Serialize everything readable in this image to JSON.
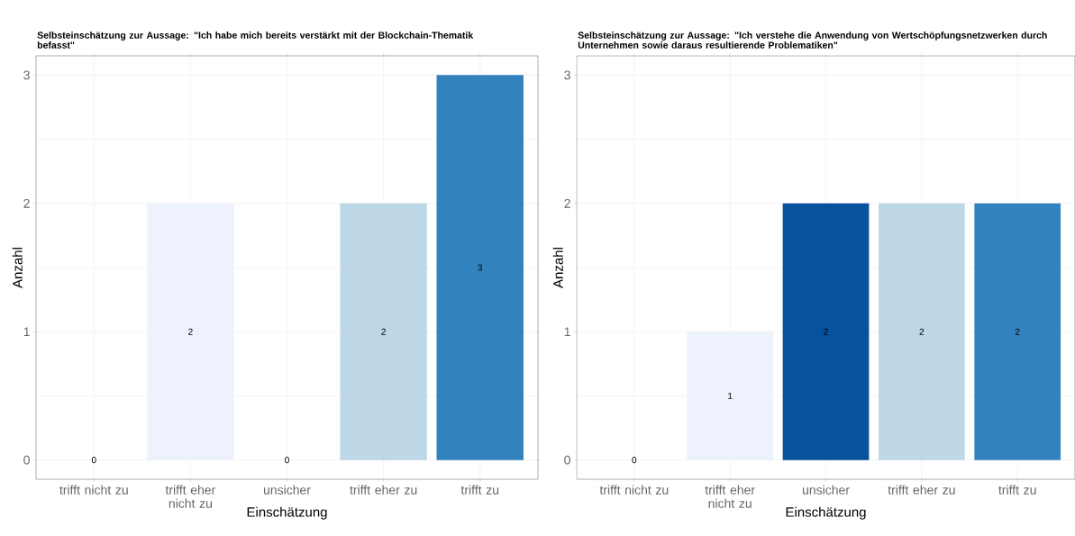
{
  "chart_data": [
    {
      "type": "bar",
      "title": "Selbsteinschätzung zur Aussage: \"Ich habe mich bereits verstärkt mit der Blockchain-Thematik befasst\"",
      "xlabel": "Einschätzung",
      "ylabel": "Anzahl",
      "categories": [
        "trifft nicht zu",
        "trifft eher nicht zu",
        "unsicher",
        "trifft eher zu",
        "trifft zu"
      ],
      "values": [
        0,
        2,
        0,
        2,
        3
      ],
      "colors": [
        "#f7fbff",
        "#eef2fd",
        "#08519c",
        "#bdd7e7",
        "#3182bd"
      ],
      "ylim": [
        -0.15,
        3.15
      ],
      "yticks": [
        0,
        1,
        2,
        3
      ],
      "grid": true,
      "data_labels": true
    },
    {
      "type": "bar",
      "title": "Selbsteinschätzung zur Aussage: \"Ich verstehe die Anwendung von Wertschöpfungsnetzwerken durch Unternehmen sowie daraus resultierende Problematiken\"",
      "xlabel": "Einschätzung",
      "ylabel": "Anzahl",
      "categories": [
        "trifft nicht zu",
        "trifft eher nicht zu",
        "unsicher",
        "trifft eher zu",
        "trifft zu"
      ],
      "values": [
        0,
        1,
        2,
        2,
        2
      ],
      "colors": [
        "#f7fbff",
        "#eef2fd",
        "#08519c",
        "#bdd7e7",
        "#3182bd"
      ],
      "ylim": [
        -0.15,
        3.15
      ],
      "yticks": [
        0,
        1,
        2,
        3
      ],
      "grid": true,
      "data_labels": true
    }
  ]
}
